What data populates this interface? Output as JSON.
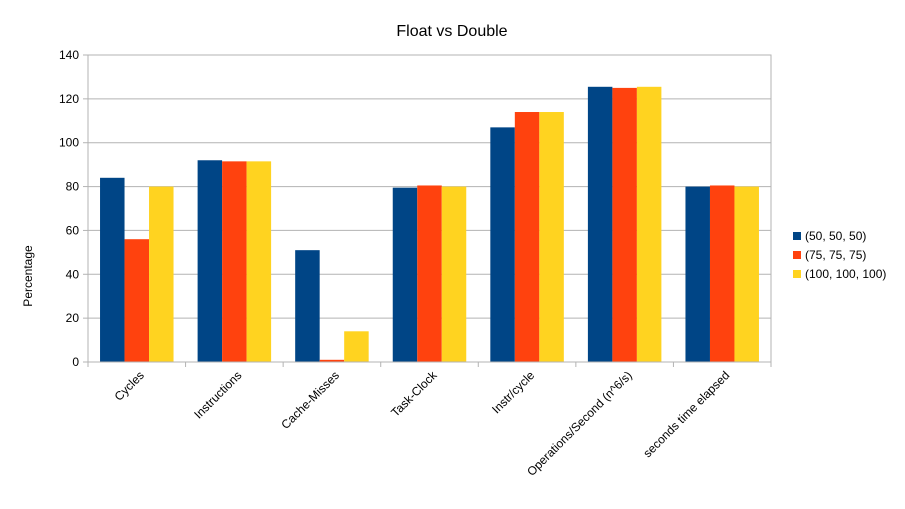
{
  "chart_data": {
    "type": "bar",
    "title": "Float vs Double",
    "ylabel": "Percentage",
    "xlabel": "",
    "ylim": [
      0,
      140
    ],
    "yticks": [
      0,
      20,
      40,
      60,
      80,
      100,
      120,
      140
    ],
    "grid": true,
    "legend_position": "right",
    "categories": [
      "Cycles",
      "Instructions",
      "Cache-Misses",
      "Task-Clock",
      "Instr/cycle",
      "Operations/Second (n^6/s)",
      "seconds time elapsed"
    ],
    "series": [
      {
        "name": "(50, 50, 50)",
        "color": "#004586",
        "values": [
          84,
          92,
          51,
          79.5,
          107,
          125.5,
          80
        ]
      },
      {
        "name": "(75, 75, 75)",
        "color": "#ff420e",
        "values": [
          56,
          91.5,
          1,
          80.5,
          114,
          125,
          80.5
        ]
      },
      {
        "name": "(100, 100, 100)",
        "color": "#ffd320",
        "values": [
          80,
          91.5,
          14,
          80,
          114,
          125.5,
          80
        ]
      }
    ]
  }
}
